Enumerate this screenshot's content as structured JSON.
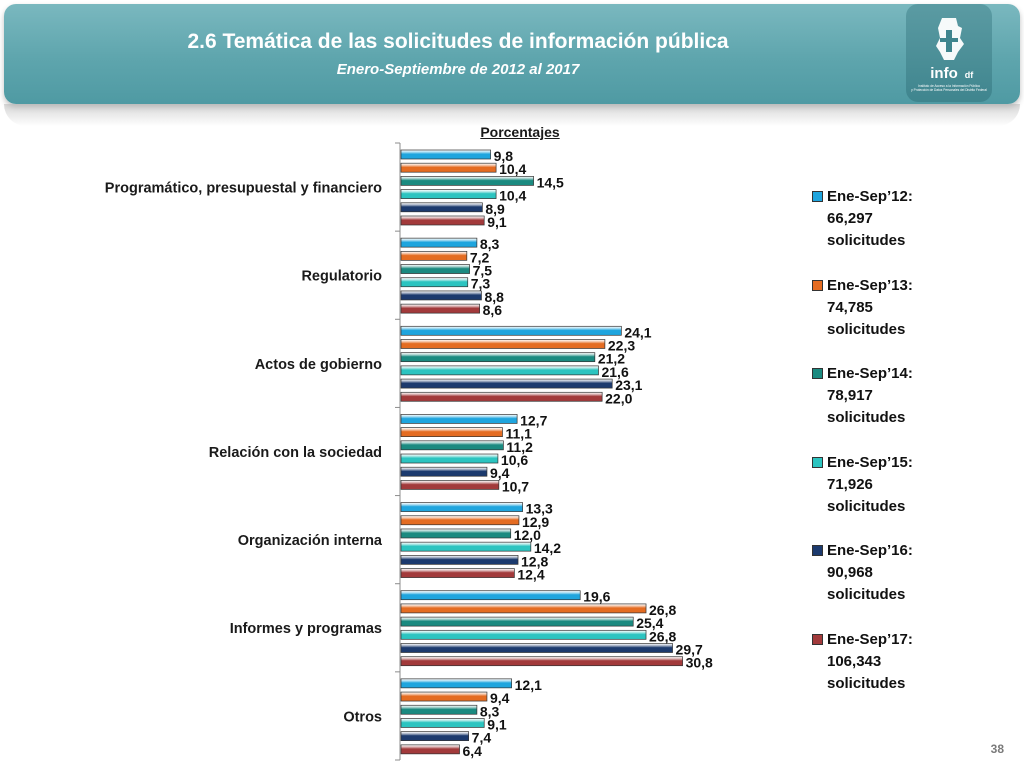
{
  "header": {
    "title": "2.6 Temática de las solicitudes de información pública",
    "subtitle": "Enero-Septiembre de 2012 al 2017",
    "logo_text": "info",
    "logo_suffix": "df",
    "logo_caption_1": "Instituto de Acceso a la Información Pública",
    "logo_caption_2": "y Protección de Datos Personales del Distrito Federal"
  },
  "page_number": "38",
  "chart_data": {
    "type": "bar",
    "orientation": "horizontal",
    "title": "",
    "xlabel": "Porcentajes",
    "ylabel": "",
    "xlim": [
      0,
      35
    ],
    "grid": false,
    "legend_position": "right",
    "decimal_separator": ",",
    "categories": [
      "Programático, presupuestal y financiero",
      "Regulatorio",
      "Actos de gobierno",
      "Relación con la sociedad",
      "Organización interna",
      "Informes y programas",
      "Otros"
    ],
    "series": [
      {
        "name": "Ene-Sep’12:",
        "count": "66,297",
        "unit": "solicitudes",
        "color": "#1fa5de",
        "values": [
          9.8,
          8.3,
          24.1,
          12.7,
          13.3,
          19.6,
          12.1
        ]
      },
      {
        "name": "Ene-Sep’13:",
        "count": "74,785",
        "unit": "solicitudes",
        "color": "#e46c22",
        "values": [
          10.4,
          7.2,
          22.3,
          11.1,
          12.9,
          26.8,
          9.4
        ]
      },
      {
        "name": "Ene-Sep’14:",
        "count": "78,917",
        "unit": "solicitudes",
        "color": "#1b8a80",
        "values": [
          14.5,
          7.5,
          21.2,
          11.2,
          12.0,
          25.4,
          8.3
        ]
      },
      {
        "name": "Ene-Sep’15:",
        "count": "71,926",
        "unit": "solicitudes",
        "color": "#2cc4c0",
        "values": [
          10.4,
          7.3,
          21.6,
          10.6,
          14.2,
          26.8,
          9.1
        ]
      },
      {
        "name": "Ene-Sep’16:",
        "count": "90,968",
        "unit": "solicitudes",
        "color": "#1c3a6e",
        "values": [
          8.9,
          8.8,
          23.1,
          9.4,
          12.8,
          29.7,
          7.4
        ]
      },
      {
        "name": "Ene-Sep’17:",
        "count": "106,343",
        "unit": "solicitudes",
        "color": "#a23a3b",
        "values": [
          9.1,
          8.6,
          22.0,
          10.7,
          12.4,
          30.8,
          6.4
        ]
      }
    ]
  }
}
